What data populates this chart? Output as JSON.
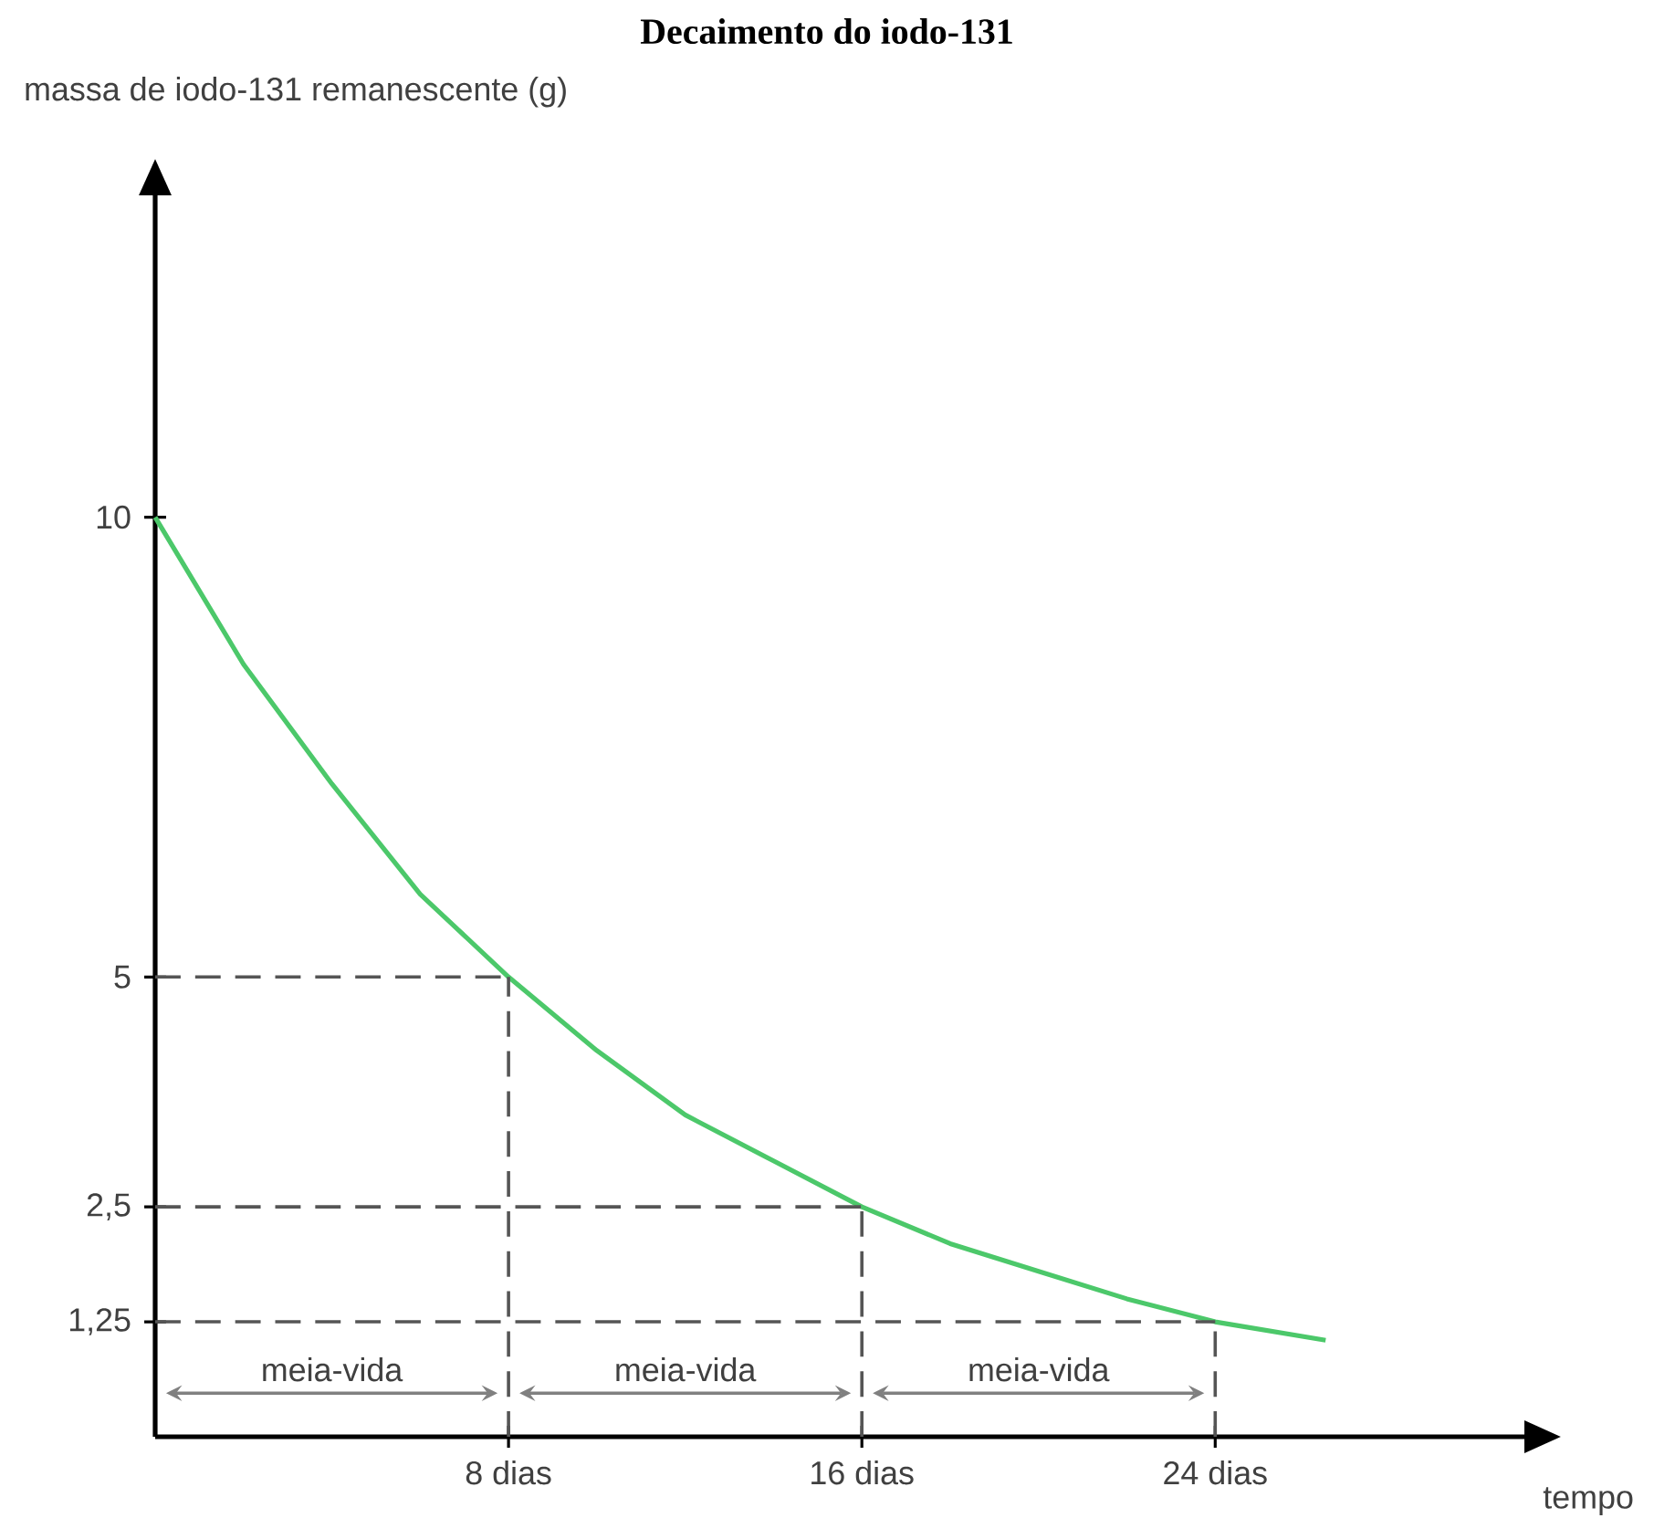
{
  "chart_data": {
    "type": "line",
    "title": "Decaimento do iodo-131",
    "xlabel": "tempo",
    "ylabel": "massa de iodo-131 remanescente (g)",
    "xlim": [
      0,
      31
    ],
    "ylim": [
      0,
      13.5
    ],
    "xticks": [
      {
        "value": 8,
        "label": "8 dias"
      },
      {
        "value": 16,
        "label": "16 dias"
      },
      {
        "value": 24,
        "label": "24 dias"
      }
    ],
    "yticks": [
      {
        "value": 1.25,
        "label": "1,25"
      },
      {
        "value": 2.5,
        "label": "2,5"
      },
      5,
      10
    ],
    "x": [
      0,
      2,
      4,
      6,
      8,
      10,
      12,
      14,
      16,
      18,
      20,
      22,
      24,
      26.5
    ],
    "series": [
      {
        "color": "#4cc86a",
        "values": [
          10,
          8.4,
          7.1,
          5.9,
          5,
          4.2,
          3.5,
          3.0,
          2.5,
          2.1,
          1.8,
          1.5,
          1.25,
          1.05
        ]
      }
    ],
    "line_style": "solid",
    "ref_lines": [
      {
        "axis": "x",
        "value": 8,
        "line_style": "dashed",
        "color": "#555555"
      },
      {
        "axis": "x",
        "value": 16,
        "line_style": "dashed",
        "color": "#555555"
      },
      {
        "axis": "x",
        "value": 24,
        "line_style": "dashed",
        "color": "#555555"
      },
      {
        "axis": "y",
        "value": 5,
        "line_style": "dashed",
        "color": "#555555"
      },
      {
        "axis": "y",
        "value": 2.5,
        "line_style": "dashed",
        "color": "#555555"
      },
      {
        "axis": "y",
        "value": 1.25,
        "line_style": "dashed",
        "color": "#555555"
      }
    ],
    "annotations": [
      "meia-vida",
      "meia-vida",
      "meia-vida"
    ]
  }
}
